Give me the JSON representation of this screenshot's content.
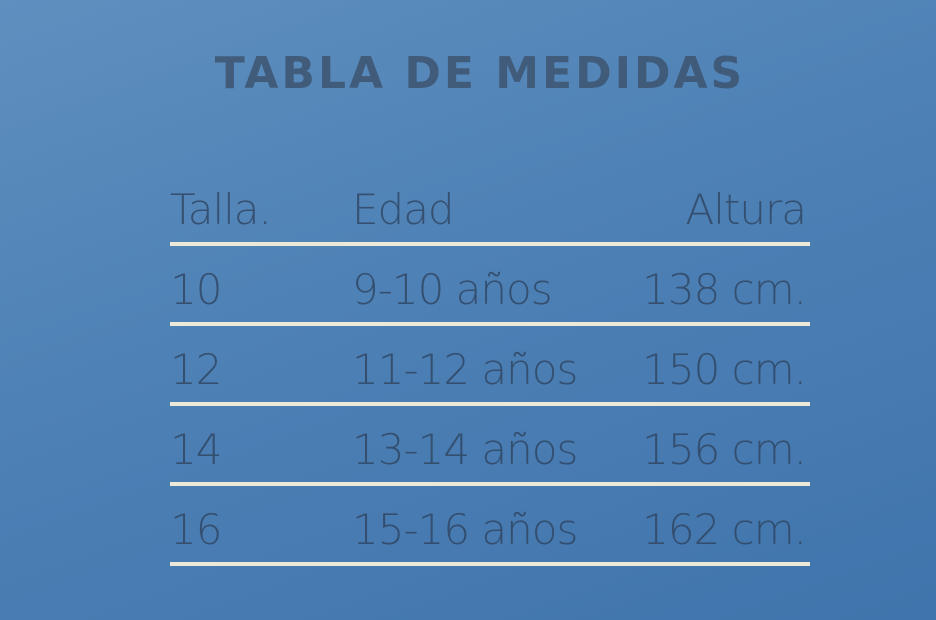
{
  "title": "TABLA DE MEDIDAS",
  "headers": [
    "Talla.",
    "Edad",
    "Altura"
  ],
  "rows": [
    [
      "10",
      "9-10 años",
      "138 cm."
    ],
    [
      "12",
      "11-12 años",
      "150 cm."
    ],
    [
      "14",
      "13-14 años",
      "156 cm."
    ],
    [
      "16",
      "15-16 años",
      "162 cm."
    ]
  ]
}
